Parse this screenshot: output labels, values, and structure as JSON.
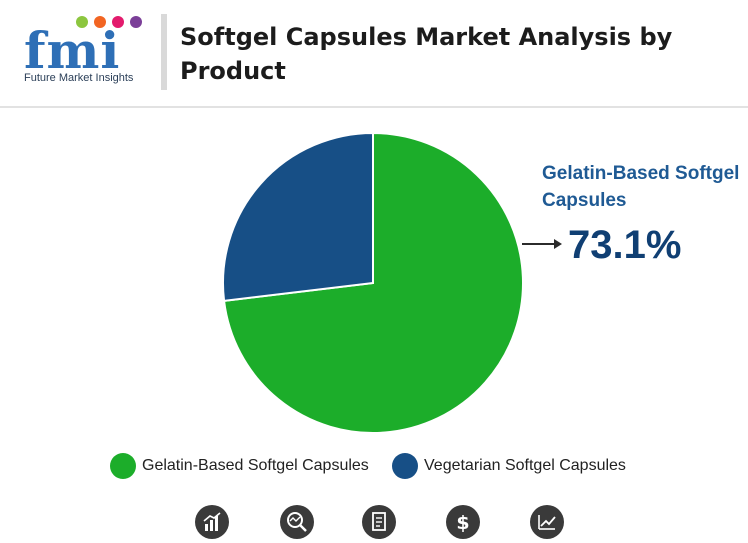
{
  "header": {
    "logo_text": "fmi",
    "logo_caption": "Future Market Insights",
    "title": "Softgel Capsules Market Analysis by Product"
  },
  "callout": {
    "label": "Gelatin-Based Softgel Capsules",
    "value": "73.1%"
  },
  "colors": {
    "gelatin": "#1cad2a",
    "vegetarian": "#174f86",
    "brand_blue": "#2e6fb6",
    "icon_dark": "#3a3a3a"
  },
  "chart_data": {
    "type": "pie",
    "title": "Softgel Capsules Market Analysis by Product",
    "slices": [
      {
        "label": "Gelatin-Based Softgel Capsules",
        "value": 73.1,
        "color": "#1cad2a"
      },
      {
        "label": "Vegetarian Softgel Capsules",
        "value": 26.9,
        "color": "#174f86"
      }
    ],
    "legend_position": "bottom",
    "annotation": {
      "label": "Gelatin-Based Softgel Capsules",
      "value": "73.1%"
    }
  },
  "legend": {
    "items": [
      {
        "label": "Gelatin-Based Softgel Capsules",
        "color": "#1cad2a"
      },
      {
        "label": "Vegetarian Softgel Capsules",
        "color": "#174f86"
      }
    ]
  },
  "bottom_icons": [
    {
      "name": "bar-growth-icon"
    },
    {
      "name": "magnifier-chart-icon"
    },
    {
      "name": "document-icon"
    },
    {
      "name": "dollar-icon"
    },
    {
      "name": "trend-chart-icon"
    }
  ]
}
